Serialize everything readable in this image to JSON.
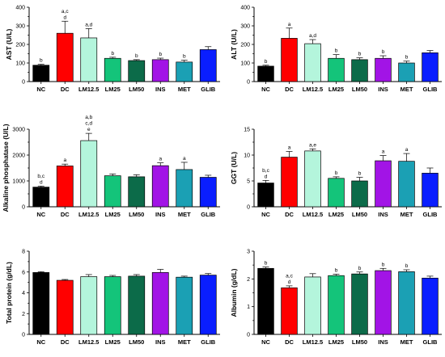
{
  "palette": [
    "#000000",
    "#ff0000",
    "#b4f5dc",
    "#14c47a",
    "#0c6b49",
    "#a214e6",
    "#1ba0b4",
    "#0a1eff"
  ],
  "chart_data": [
    {
      "type": "bar",
      "title": "",
      "ylabel": "AST (U/L)",
      "ylim": [
        0,
        400
      ],
      "yticks": [
        0,
        100,
        200,
        300,
        400
      ],
      "categories": [
        "NC",
        "DC",
        "LM12.5",
        "LM25",
        "LM50",
        "INS",
        "MET",
        "GLIB"
      ],
      "values": [
        88,
        260,
        235,
        125,
        113,
        118,
        105,
        172
      ],
      "errors": [
        5,
        65,
        50,
        6,
        5,
        8,
        10,
        16
      ],
      "labels": [
        [
          "b"
        ],
        [
          "a,c",
          "d"
        ],
        [
          "a,d"
        ],
        [
          "b"
        ],
        [
          "b"
        ],
        [
          "b"
        ],
        [
          "b"
        ],
        []
      ]
    },
    {
      "type": "bar",
      "title": "",
      "ylabel": "ALT (U/L)",
      "ylim": [
        0,
        400
      ],
      "yticks": [
        0,
        100,
        200,
        300,
        400
      ],
      "categories": [
        "NC",
        "DC",
        "LM12.5",
        "LM25",
        "LM50",
        "INS",
        "MET",
        "GLIB"
      ],
      "values": [
        83,
        233,
        204,
        125,
        118,
        125,
        100,
        155
      ],
      "errors": [
        5,
        55,
        22,
        20,
        10,
        14,
        10,
        12
      ],
      "labels": [
        [
          "b"
        ],
        [
          "a"
        ],
        [
          "a,d"
        ],
        [
          "b"
        ],
        [
          "b"
        ],
        [
          "b"
        ],
        [
          "b"
        ],
        []
      ]
    },
    {
      "type": "bar",
      "title": "",
      "ylabel": "Alkaline phosphatase (U/L)",
      "ylim": [
        0,
        3000
      ],
      "yticks": [
        0,
        1000,
        2000,
        3000
      ],
      "categories": [
        "NC",
        "DC",
        "LM12.5",
        "LM25",
        "LM50",
        "INS",
        "MET",
        "GLIB"
      ],
      "values": [
        760,
        1580,
        2560,
        1200,
        1160,
        1590,
        1440,
        1140
      ],
      "errors": [
        40,
        70,
        280,
        70,
        80,
        110,
        280,
        80
      ],
      "labels": [
        [
          "b,c",
          "d"
        ],
        [
          "a"
        ],
        [
          "a,b",
          "c,d",
          "e"
        ],
        [],
        [],
        [
          "a"
        ],
        [
          "a"
        ],
        []
      ]
    },
    {
      "type": "bar",
      "title": "",
      "ylabel": "GGT (U/L)",
      "ylim": [
        0,
        15
      ],
      "yticks": [
        0,
        5,
        10,
        15
      ],
      "categories": [
        "NC",
        "DC",
        "LM12.5",
        "LM25",
        "LM50",
        "INS",
        "MET",
        "GLIB"
      ],
      "values": [
        4.6,
        9.6,
        10.8,
        5.5,
        5.0,
        8.9,
        8.8,
        6.5
      ],
      "errors": [
        0.5,
        1.1,
        0.4,
        0.3,
        0.7,
        1.0,
        1.5,
        1.0
      ],
      "labels": [
        [
          "b,c",
          "d"
        ],
        [
          "a"
        ],
        [
          "a,e"
        ],
        [
          "b"
        ],
        [
          "b"
        ],
        [
          "a"
        ],
        [
          "a"
        ],
        []
      ]
    },
    {
      "type": "bar",
      "title": "",
      "ylabel": "Total protein (g/dL)",
      "ylim": [
        0,
        8
      ],
      "yticks": [
        0,
        2,
        4,
        6,
        8
      ],
      "categories": [
        "NC",
        "DC",
        "LM12.5",
        "LM25",
        "LM50",
        "INS",
        "MET",
        "GLIB"
      ],
      "values": [
        5.95,
        5.2,
        5.55,
        5.55,
        5.6,
        5.95,
        5.5,
        5.7
      ],
      "errors": [
        0.08,
        0.08,
        0.2,
        0.12,
        0.15,
        0.3,
        0.1,
        0.15
      ],
      "labels": [
        [],
        [],
        [],
        [],
        [],
        [],
        [],
        []
      ]
    },
    {
      "type": "bar",
      "title": "",
      "ylabel": "Albumin (g/dL)",
      "ylim": [
        0,
        3
      ],
      "yticks": [
        0,
        1,
        2,
        3
      ],
      "categories": [
        "NC",
        "DC",
        "LM12.5",
        "LM25",
        "LM50",
        "INS",
        "MET",
        "GLIB"
      ],
      "values": [
        2.38,
        1.68,
        2.07,
        2.12,
        2.18,
        2.3,
        2.26,
        2.03
      ],
      "errors": [
        0.05,
        0.07,
        0.12,
        0.05,
        0.07,
        0.08,
        0.07,
        0.07
      ],
      "labels": [
        [
          "b"
        ],
        [
          "a,c",
          "d"
        ],
        [],
        [
          "b"
        ],
        [
          "b"
        ],
        [
          "b"
        ],
        [
          "b"
        ],
        []
      ]
    }
  ]
}
